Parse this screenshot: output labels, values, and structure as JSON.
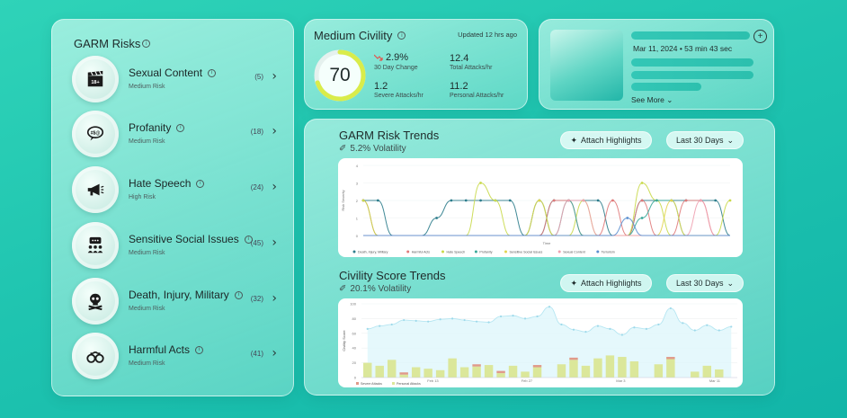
{
  "garm": {
    "title": "GARM Risks",
    "items": [
      {
        "name": "Sexual Content",
        "level": "Medium Risk",
        "count": "(5)",
        "icon": "clapperboard-18-icon"
      },
      {
        "name": "Profanity",
        "level": "Medium Risk",
        "count": "(18)",
        "icon": "speech-bubble-profanity-icon"
      },
      {
        "name": "Hate Speech",
        "level": "High Risk",
        "count": "(24)",
        "icon": "megaphone-icon"
      },
      {
        "name": "Sensitive Social Issues",
        "level": "Medium Risk",
        "count": "(45)",
        "icon": "people-discussion-icon"
      },
      {
        "name": "Death, Injury, Military",
        "level": "Medium Risk",
        "count": "(32)",
        "icon": "skull-crossbones-icon"
      },
      {
        "name": "Harmful Acts",
        "level": "Medium Risk",
        "count": "(41)",
        "icon": "handcuffs-icon"
      }
    ]
  },
  "civility": {
    "title": "Medium Civility",
    "updated": "Updated 12 hrs ago",
    "score": "70",
    "score_fraction": 0.7,
    "change_value": "2.9%",
    "change_label": "30 Day Change",
    "total_attacks_value": "12.4",
    "total_attacks_label": "Total Attacks/hr",
    "severe_attacks_value": "1.2",
    "severe_attacks_label": "Severe Attacks/hr",
    "personal_attacks_value": "11.2",
    "personal_attacks_label": "Personal Attacks/hr",
    "down_color": "#e0574f",
    "gauge_color": "#d9ec4a"
  },
  "media": {
    "date": "Mar 11, 2024 • 53 min 43 sec",
    "see_more": "See More"
  },
  "garm_trends": {
    "title": "GARM Risk Trends",
    "volatility": "5.2% Volatility",
    "attach_label": "Attach Highlights",
    "range_label": "Last 30 Days",
    "ylabel": "Risk Severity",
    "xlabel": "Time"
  },
  "civility_trends": {
    "title": "Civility Score Trends",
    "volatility": "20.1% Volatility",
    "attach_label": "Attach Highlights",
    "range_label": "Last 30 Days",
    "ylabel": "Civility Score"
  },
  "chart_data": [
    {
      "type": "line",
      "title": "GARM Risk Trends",
      "xlabel": "Time",
      "ylabel": "Risk Severity",
      "ylim": [
        0,
        4
      ],
      "yticks": [
        "0",
        "1",
        "2",
        "3",
        "4"
      ],
      "x": [
        0,
        1,
        2,
        3,
        4,
        5,
        6,
        7,
        8,
        9,
        10,
        11,
        12,
        13,
        14,
        15,
        16,
        17,
        18,
        19,
        20,
        21,
        22,
        23,
        24,
        25
      ],
      "series": [
        {
          "name": "Death, Injury, Military",
          "color": "#2e7d8c",
          "values": [
            2,
            2,
            0,
            0,
            0,
            1,
            2,
            2,
            2,
            2,
            2,
            0,
            0,
            2,
            2,
            2,
            2,
            0,
            0,
            2,
            2,
            2,
            2,
            2,
            2,
            0
          ]
        },
        {
          "name": "Harmful Acts",
          "color": "#e07a7a",
          "values": [
            2,
            0,
            0,
            0,
            0,
            0,
            0,
            0,
            0,
            0,
            0,
            0,
            0,
            2,
            2,
            0,
            0,
            2,
            0,
            2,
            0,
            0,
            2,
            2,
            0,
            0
          ]
        },
        {
          "name": "Hate Speech",
          "color": "#c9d94a",
          "values": [
            2,
            0,
            0,
            0,
            0,
            0,
            0,
            0,
            3,
            2,
            0,
            0,
            2,
            0,
            0,
            2,
            0,
            0,
            0,
            3,
            2,
            0,
            0,
            0,
            0,
            2
          ]
        },
        {
          "name": "Profanity",
          "color": "#3aa899",
          "values": [
            0,
            0,
            0,
            0,
            0,
            0,
            0,
            0,
            0,
            0,
            0,
            0,
            2,
            0,
            2,
            0,
            0,
            0,
            0,
            1,
            2,
            2,
            0,
            0,
            0,
            0
          ]
        },
        {
          "name": "Sensitive Social Issues",
          "color": "#e2d44e",
          "values": [
            0,
            0,
            0,
            0,
            0,
            0,
            0,
            0,
            0,
            0,
            0,
            0,
            2,
            0,
            0,
            0,
            0,
            0,
            0,
            0,
            0,
            2,
            0,
            0,
            0,
            0
          ]
        },
        {
          "name": "Sexual Content",
          "color": "#f0a0b0",
          "values": [
            0,
            0,
            0,
            0,
            0,
            0,
            0,
            0,
            0,
            0,
            0,
            0,
            0,
            0,
            2,
            2,
            0,
            0,
            0,
            0,
            0,
            0,
            0,
            2,
            0,
            0
          ]
        },
        {
          "name": "Terrorism",
          "color": "#5b8fd0",
          "values": [
            0,
            0,
            0,
            0,
            0,
            0,
            0,
            0,
            0,
            0,
            0,
            0,
            0,
            0,
            0,
            0,
            0,
            0,
            1,
            0,
            0,
            0,
            0,
            0,
            0,
            0
          ]
        }
      ]
    },
    {
      "type": "bar",
      "title": "Civility Score Trends",
      "ylabel": "Civility Score",
      "ylim": [
        0,
        100
      ],
      "yticks": [
        "0",
        "20",
        "40",
        "60",
        "80",
        "100"
      ],
      "xtick_labels": [
        "Feb 13",
        "Feb 27",
        "Mar 3",
        "Mar 11"
      ],
      "line_values": [
        66,
        70,
        72,
        78,
        77,
        76,
        79,
        80,
        78,
        76,
        75,
        83,
        84,
        80,
        83,
        96,
        72,
        65,
        62,
        70,
        66,
        58,
        68,
        66,
        72,
        94,
        74,
        64,
        71,
        64,
        69
      ],
      "severe_attacks": [
        0,
        0,
        0,
        3,
        0,
        0,
        0,
        0,
        0,
        3,
        0,
        3,
        0,
        0,
        3,
        0,
        0,
        3,
        0,
        0,
        0,
        0,
        0,
        0,
        0,
        3,
        0,
        0,
        0,
        0,
        0
      ],
      "personal_attacks": [
        20,
        16,
        24,
        4,
        14,
        12,
        10,
        26,
        14,
        15,
        17,
        6,
        16,
        8,
        14,
        0,
        18,
        24,
        16,
        26,
        30,
        28,
        22,
        0,
        18,
        25,
        0,
        8,
        16,
        11,
        0
      ],
      "legend": [
        "Severe Attacks",
        "Personal Attacks"
      ],
      "series_colors": [
        "#e09a8a",
        "#dbe79a"
      ]
    }
  ]
}
